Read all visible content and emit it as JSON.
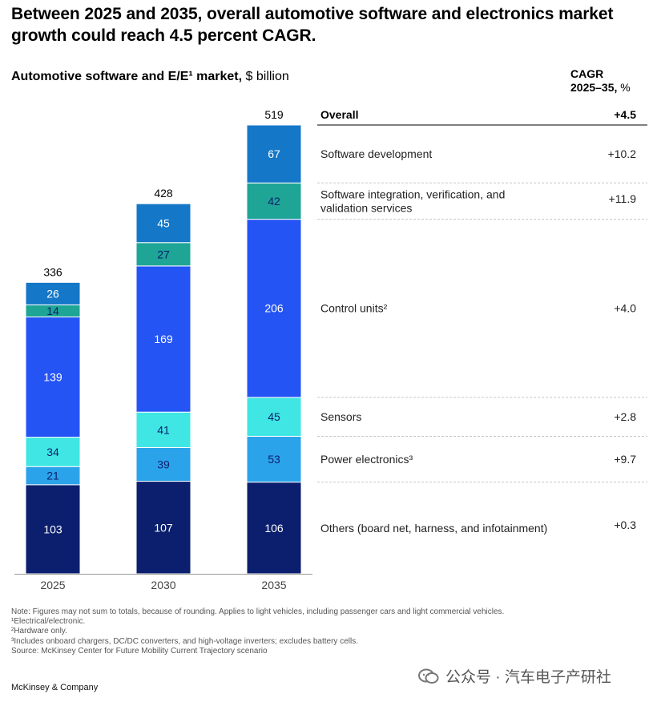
{
  "title": "Between 2025 and 2035, overall automotive software and electronics market growth could reach 4.5 percent CAGR.",
  "subtitle_bold": "Automotive software and E/E¹ market,",
  "subtitle_unit": "$ billion",
  "cagr_header_line1": "CAGR",
  "cagr_header_line2": "2025–35,",
  "cagr_header_unit": "%",
  "chart_data": {
    "type": "bar",
    "stacked": true,
    "categories": [
      "2025",
      "2030",
      "2035"
    ],
    "totals": [
      "336",
      "428",
      "519"
    ],
    "overall": {
      "label": "Overall",
      "cagr": "+4.5"
    },
    "series": [
      {
        "name": "Others (board net, harness, and infotainment)",
        "values": [
          103,
          107,
          106
        ],
        "cagr": "+0.3",
        "color": "#0b1f6e",
        "text_color": "#ffffff"
      },
      {
        "name": "Power electronics³",
        "values": [
          21,
          39,
          53
        ],
        "cagr": "+9.7",
        "color": "#2ba3ea",
        "text_color": "#0b1f6e"
      },
      {
        "name": "Sensors",
        "values": [
          34,
          41,
          45
        ],
        "cagr": "+2.8",
        "color": "#3fe6e3",
        "text_color": "#0b1f6e"
      },
      {
        "name": "Control units²",
        "values": [
          139,
          169,
          206
        ],
        "cagr": "+4.0",
        "color": "#2554f5",
        "text_color": "#ffffff"
      },
      {
        "name": "Software integration, verification, and validation services",
        "values": [
          14,
          27,
          42
        ],
        "cagr": "+11.9",
        "color": "#1ea596",
        "text_color": "#0b1f6e"
      },
      {
        "name": "Software development",
        "values": [
          26,
          45,
          67
        ],
        "cagr": "+10.2",
        "color": "#1477c8",
        "text_color": "#ffffff"
      }
    ],
    "ylim": [
      0,
      519
    ]
  },
  "footnotes": [
    "Note: Figures may not sum to totals, because of rounding. Applies to light vehicles, including passenger cars and light commercial vehicles.",
    "¹Electrical/electronic.",
    "²Hardware only.",
    "³Includes onboard chargers, DC/DC converters, and high-voltage inverters; excludes battery cells.",
    "Source: McKinsey Center for Future Mobility Current Trajectory scenario"
  ],
  "brand": "McKinsey & Company",
  "watermark": "公众号 · 汽车电子产研社",
  "colors": {
    "grid": "#c8c8c8",
    "axis": "#999999"
  }
}
